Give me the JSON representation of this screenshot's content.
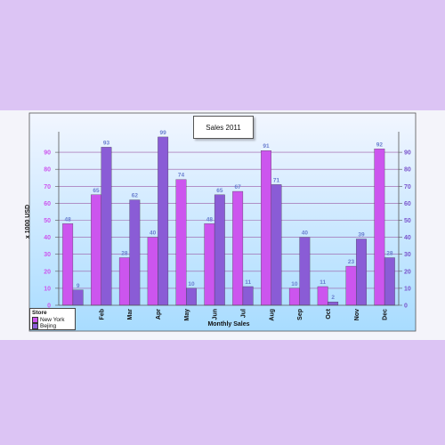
{
  "chart_data": {
    "type": "bar",
    "title": "Sales 2011",
    "xlabel": "Monthly Sales",
    "ylabel": "x 1000 USD",
    "categories": [
      "Jan",
      "Feb",
      "Mar",
      "Apr",
      "May",
      "Jun",
      "Jul",
      "Aug",
      "Sep",
      "Oct",
      "Nov",
      "Dec"
    ],
    "series": [
      {
        "name": "New York",
        "color": "#cc55ee",
        "values": [
          48,
          65,
          28,
          40,
          74,
          48,
          67,
          91,
          10,
          11,
          23,
          92
        ]
      },
      {
        "name": "Bejing",
        "color": "#8a5cd6",
        "values": [
          9,
          93,
          62,
          99,
          10,
          65,
          11,
          71,
          40,
          2,
          39,
          28
        ]
      }
    ],
    "ylim": [
      0,
      100
    ],
    "yticks": [
      0,
      10,
      20,
      30,
      40,
      50,
      60,
      70,
      80,
      90
    ],
    "grid": true,
    "legend": {
      "title": "Store",
      "position": "bottom-left"
    },
    "colors": {
      "left_axis": "#cc55ee",
      "right_axis": "#7a55cc",
      "value_label": "#6a7fcf",
      "plot_bg_top": "#f2f6ff",
      "plot_bg_bottom": "#a8dcff",
      "gridline": "#9a5aa6"
    }
  }
}
